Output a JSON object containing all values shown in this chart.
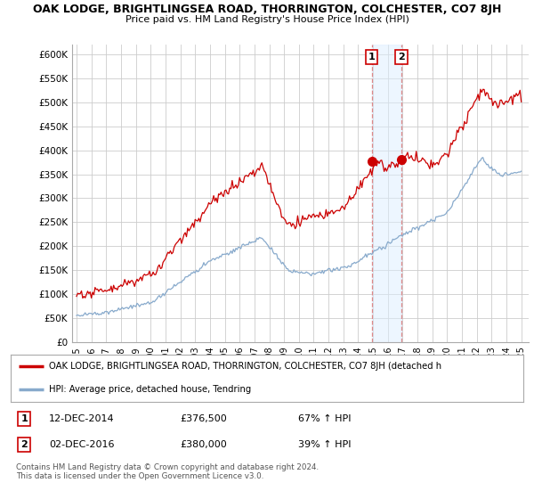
{
  "title": "OAK LODGE, BRIGHTLINGSEA ROAD, THORRINGTON, COLCHESTER, CO7 8JH",
  "subtitle": "Price paid vs. HM Land Registry's House Price Index (HPI)",
  "ylabel_ticks": [
    "£0",
    "£50K",
    "£100K",
    "£150K",
    "£200K",
    "£250K",
    "£300K",
    "£350K",
    "£400K",
    "£450K",
    "£500K",
    "£550K",
    "£600K"
  ],
  "ylim": [
    0,
    620000
  ],
  "yticks": [
    0,
    50000,
    100000,
    150000,
    200000,
    250000,
    300000,
    350000,
    400000,
    450000,
    500000,
    550000,
    600000
  ],
  "red_line_color": "#cc0000",
  "blue_line_color": "#88aacc",
  "marker1_date": 2014.92,
  "marker1_value": 376500,
  "marker2_date": 2016.92,
  "marker2_value": 380000,
  "vline1_color": "#dd8888",
  "vline2_color": "#dd8888",
  "shaded_region_color": "#ddeeff",
  "shaded_region_alpha": 0.5,
  "legend1_text": "OAK LODGE, BRIGHTLINGSEA ROAD, THORRINGTON, COLCHESTER, CO7 8JH (detached h",
  "legend2_text": "HPI: Average price, detached house, Tendring",
  "note1_label": "1",
  "note1_date": "12-DEC-2014",
  "note1_price": "£376,500",
  "note1_hpi": "67% ↑ HPI",
  "note2_label": "2",
  "note2_date": "02-DEC-2016",
  "note2_price": "£380,000",
  "note2_hpi": "39% ↑ HPI",
  "footer": "Contains HM Land Registry data © Crown copyright and database right 2024.\nThis data is licensed under the Open Government Licence v3.0.",
  "background_color": "#ffffff",
  "grid_color": "#cccccc"
}
